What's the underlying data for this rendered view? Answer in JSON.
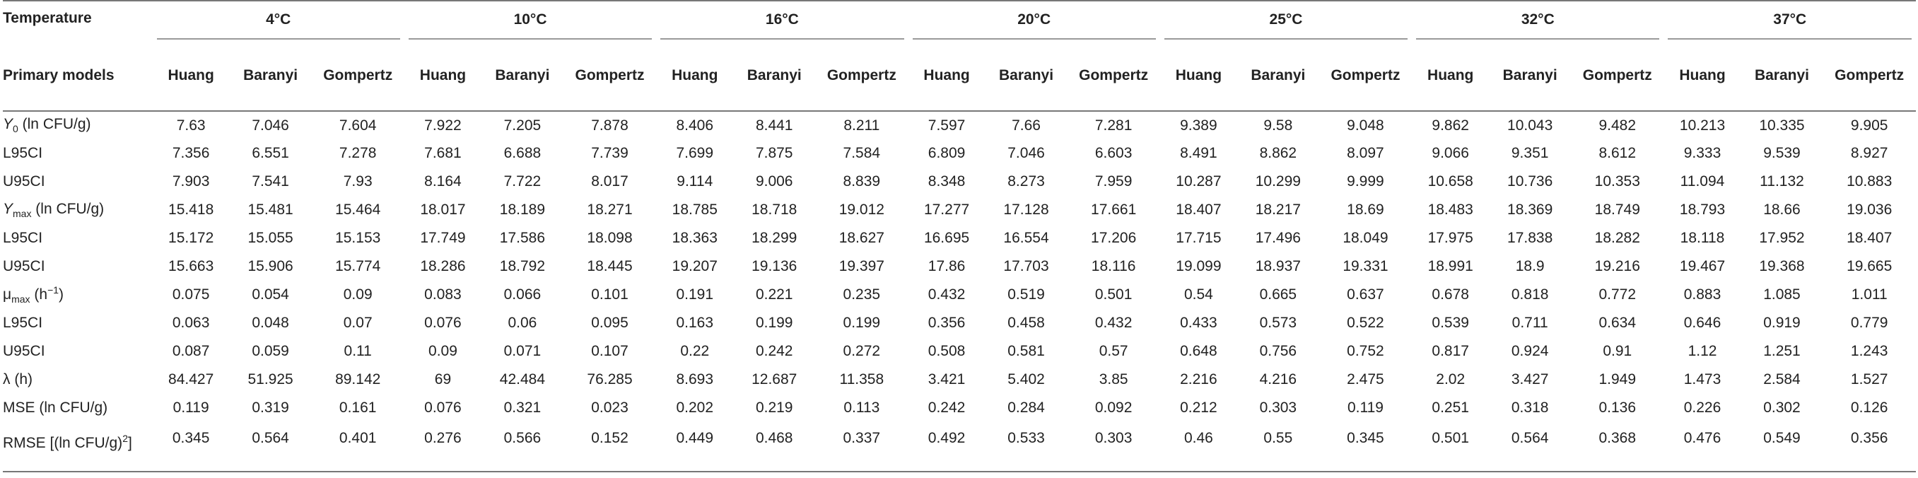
{
  "header": {
    "temperature_label": "Temperature",
    "models_label": "Primary models",
    "temperatures": [
      "4°C",
      "10°C",
      "16°C",
      "20°C",
      "25°C",
      "32°C",
      "37°C"
    ],
    "models": [
      "Huang",
      "Baranyi",
      "Gompertz"
    ]
  },
  "rows": [
    {
      "label": "Y0 (ln CFU/g)",
      "values": [
        "7.63",
        "7.046",
        "7.604",
        "7.922",
        "7.205",
        "7.878",
        "8.406",
        "8.441",
        "8.211",
        "7.597",
        "7.66",
        "7.281",
        "9.389",
        "9.58",
        "9.048",
        "9.862",
        "10.043",
        "9.482",
        "10.213",
        "10.335",
        "9.905"
      ]
    },
    {
      "label": "L95CI",
      "values": [
        "7.356",
        "6.551",
        "7.278",
        "7.681",
        "6.688",
        "7.739",
        "7.699",
        "7.875",
        "7.584",
        "6.809",
        "7.046",
        "6.603",
        "8.491",
        "8.862",
        "8.097",
        "9.066",
        "9.351",
        "8.612",
        "9.333",
        "9.539",
        "8.927"
      ]
    },
    {
      "label": "U95CI",
      "values": [
        "7.903",
        "7.541",
        "7.93",
        "8.164",
        "7.722",
        "8.017",
        "9.114",
        "9.006",
        "8.839",
        "8.348",
        "8.273",
        "7.959",
        "10.287",
        "10.299",
        "9.999",
        "10.658",
        "10.736",
        "10.353",
        "11.094",
        "11.132",
        "10.883"
      ]
    },
    {
      "label": "Ymax (ln CFU/g)",
      "values": [
        "15.418",
        "15.481",
        "15.464",
        "18.017",
        "18.189",
        "18.271",
        "18.785",
        "18.718",
        "19.012",
        "17.277",
        "17.128",
        "17.661",
        "18.407",
        "18.217",
        "18.69",
        "18.483",
        "18.369",
        "18.749",
        "18.793",
        "18.66",
        "19.036"
      ]
    },
    {
      "label": "L95CI",
      "values": [
        "15.172",
        "15.055",
        "15.153",
        "17.749",
        "17.586",
        "18.098",
        "18.363",
        "18.299",
        "18.627",
        "16.695",
        "16.554",
        "17.206",
        "17.715",
        "17.496",
        "18.049",
        "17.975",
        "17.838",
        "18.282",
        "18.118",
        "17.952",
        "18.407"
      ]
    },
    {
      "label": "U95CI",
      "values": [
        "15.663",
        "15.906",
        "15.774",
        "18.286",
        "18.792",
        "18.445",
        "19.207",
        "19.136",
        "19.397",
        "17.86",
        "17.703",
        "18.116",
        "19.099",
        "18.937",
        "19.331",
        "18.991",
        "18.9",
        "19.216",
        "19.467",
        "19.368",
        "19.665"
      ]
    },
    {
      "label": "μmax (h−1)",
      "values": [
        "0.075",
        "0.054",
        "0.09",
        "0.083",
        "0.066",
        "0.101",
        "0.191",
        "0.221",
        "0.235",
        "0.432",
        "0.519",
        "0.501",
        "0.54",
        "0.665",
        "0.637",
        "0.678",
        "0.818",
        "0.772",
        "0.883",
        "1.085",
        "1.011"
      ]
    },
    {
      "label": "L95CI",
      "values": [
        "0.063",
        "0.048",
        "0.07",
        "0.076",
        "0.06",
        "0.095",
        "0.163",
        "0.199",
        "0.199",
        "0.356",
        "0.458",
        "0.432",
        "0.433",
        "0.573",
        "0.522",
        "0.539",
        "0.711",
        "0.634",
        "0.646",
        "0.919",
        "0.779"
      ]
    },
    {
      "label": "U95CI",
      "values": [
        "0.087",
        "0.059",
        "0.11",
        "0.09",
        "0.071",
        "0.107",
        "0.22",
        "0.242",
        "0.272",
        "0.508",
        "0.581",
        "0.57",
        "0.648",
        "0.756",
        "0.752",
        "0.817",
        "0.924",
        "0.91",
        "1.12",
        "1.251",
        "1.243"
      ]
    },
    {
      "label": "λ (h)",
      "values": [
        "84.427",
        "51.925",
        "89.142",
        "69",
        "42.484",
        "76.285",
        "8.693",
        "12.687",
        "11.358",
        "3.421",
        "5.402",
        "3.85",
        "2.216",
        "4.216",
        "2.475",
        "2.02",
        "3.427",
        "1.949",
        "1.473",
        "2.584",
        "1.527"
      ]
    },
    {
      "label": "MSE (ln CFU/g)",
      "values": [
        "0.119",
        "0.319",
        "0.161",
        "0.076",
        "0.321",
        "0.023",
        "0.202",
        "0.219",
        "0.113",
        "0.242",
        "0.284",
        "0.092",
        "0.212",
        "0.303",
        "0.119",
        "0.251",
        "0.318",
        "0.136",
        "0.226",
        "0.302",
        "0.126"
      ]
    },
    {
      "label": "RMSE [(ln CFU/g)2]",
      "values": [
        "0.345",
        "0.564",
        "0.401",
        "0.276",
        "0.566",
        "0.152",
        "0.449",
        "0.468",
        "0.337",
        "0.492",
        "0.533",
        "0.303",
        "0.46",
        "0.55",
        "0.345",
        "0.501",
        "0.564",
        "0.368",
        "0.476",
        "0.549",
        "0.356"
      ]
    }
  ],
  "label_parts": {
    "y0": {
      "sym": "Y",
      "sub": "0",
      "rest": " (ln CFU/g)"
    },
    "ymax": {
      "sym": "Y",
      "sub": "max",
      "rest": " (ln CFU/g)"
    },
    "mumax": {
      "sym": "μ",
      "sub": "max",
      "pre": " (h",
      "sup": "−1",
      "post": ")"
    },
    "rmse": {
      "pre": "RMSE [(ln CFU/g)",
      "sup": "2",
      "post": "]"
    }
  }
}
